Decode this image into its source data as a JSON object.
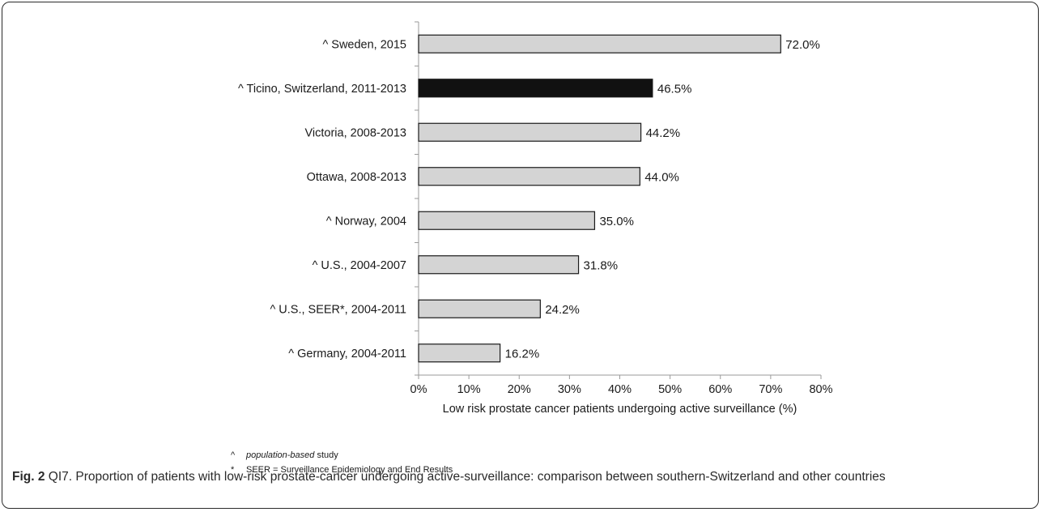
{
  "chart_data": {
    "type": "bar",
    "orientation": "horizontal",
    "categories": [
      "^ Sweden, 2015",
      "^ Ticino, Switzerland, 2011-2013",
      "Victoria, 2008-2013",
      "Ottawa, 2008-2013",
      "^ Norway, 2004",
      "^ U.S., 2004-2007",
      "^ U.S., SEER*, 2004-2011",
      "^ Germany, 2004-2011"
    ],
    "values": [
      72.0,
      46.5,
      44.2,
      44.0,
      35.0,
      31.8,
      24.2,
      16.2
    ],
    "value_labels": [
      "72.0%",
      "46.5%",
      "44.2%",
      "44.0%",
      "35.0%",
      "31.8%",
      "24.2%",
      "16.2%"
    ],
    "highlighted": "^ Ticino, Switzerland, 2011-2013",
    "bar_color": "#d4d4d4",
    "highlight_color": "#111111",
    "xlabel": "Low risk prostate cancer patients undergoing active surveillance (%)",
    "xlim": [
      0,
      80
    ],
    "xticks": [
      0,
      10,
      20,
      30,
      40,
      50,
      60,
      70,
      80
    ],
    "xtick_labels": [
      "0%",
      "10%",
      "20%",
      "30%",
      "40%",
      "50%",
      "60%",
      "70%",
      "80%"
    ],
    "grid": false
  },
  "notes": [
    {
      "symbol": "^",
      "emphasis": "population-based",
      "text": " study"
    },
    {
      "symbol": "*",
      "emphasis": "",
      "text": "SEER = Surveillance Epidemiology and End Results"
    }
  ],
  "caption": {
    "label": "Fig. 2",
    "text": " QI7. Proportion of patients with low-risk prostate-cancer undergoing active-surveillance: comparison between southern-Switzerland and other countries"
  }
}
